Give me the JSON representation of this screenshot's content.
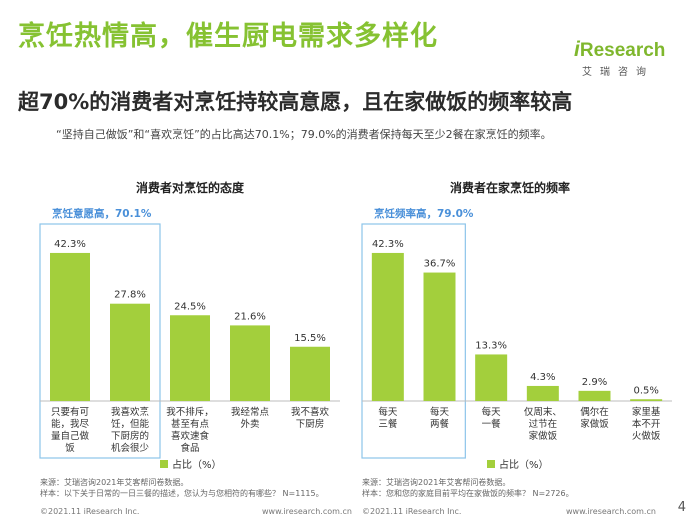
{
  "header": {
    "title": "烹饪热情高，催生厨电需求多样化",
    "subtitle": "超70%的消费者对烹饪持较高意愿，且在家做饭的频率较高",
    "description": "“坚持自己做饭”和“喜欢烹饪”的占比高达70.1%；79.0%的消费者保持每天至少2餐在家烹饪的频率。"
  },
  "logo": {
    "main_i": "i",
    "main_rest": "Research",
    "sub": "艾瑞咨询"
  },
  "colors": {
    "accent": "#86c232",
    "bar": "#a3cf3c",
    "highlight_text": "#4a90d9",
    "highlight_border": "#8cc4ea"
  },
  "chart_data": [
    {
      "type": "bar",
      "title": "消费者对烹饪的态度",
      "highlight": {
        "label": "烹饪意愿高，70.1%",
        "count": 2
      },
      "categories": [
        [
          "只要有可",
          "能，我尽",
          "量自己做",
          "饭"
        ],
        [
          "我喜欢烹",
          "饪，但能",
          "下厨房的",
          "机会很少"
        ],
        [
          "我不排斥，",
          "甚至有点",
          "喜欢速食",
          "食品"
        ],
        [
          "我经常点",
          "外卖"
        ],
        [
          "我不喜欢",
          "下厨房"
        ]
      ],
      "values": [
        42.3,
        27.8,
        24.5,
        21.6,
        15.5
      ],
      "labels": [
        "42.3%",
        "27.8%",
        "24.5%",
        "21.6%",
        "15.5%"
      ],
      "ylim": [
        0,
        50
      ],
      "legend": "占比（%）",
      "source": [
        "来源：艾瑞咨询2021年艾客帮问卷数据。",
        "样本：以下关于日常的一日三餐的描述，您认为与您相符的有哪些？ N=1115。"
      ]
    },
    {
      "type": "bar",
      "title": "消费者在家烹饪的频率",
      "highlight": {
        "label": "烹饪频率高，79.0%",
        "count": 2
      },
      "categories": [
        [
          "每天",
          "三餐"
        ],
        [
          "每天",
          "两餐"
        ],
        [
          "每天",
          "一餐"
        ],
        [
          "仅周末、",
          "过节在",
          "家做饭"
        ],
        [
          "偶尔在",
          "家做饭"
        ],
        [
          "家里基",
          "本不开",
          "火做饭"
        ]
      ],
      "values": [
        42.3,
        36.7,
        13.3,
        4.3,
        2.9,
        0.5
      ],
      "labels": [
        "42.3%",
        "36.7%",
        "13.3%",
        "4.3%",
        "2.9%",
        "0.5%"
      ],
      "ylim": [
        0,
        50
      ],
      "legend": "占比（%）",
      "source": [
        "来源：艾瑞咨询2021年艾客帮问卷数据。",
        "样本：您和您的家庭目前平均在家做饭的频率？ N=2726。"
      ]
    }
  ],
  "footer": {
    "copyright": "©2021.11 iResearch Inc.",
    "website": "www.iresearch.com.cn",
    "page": "4"
  }
}
